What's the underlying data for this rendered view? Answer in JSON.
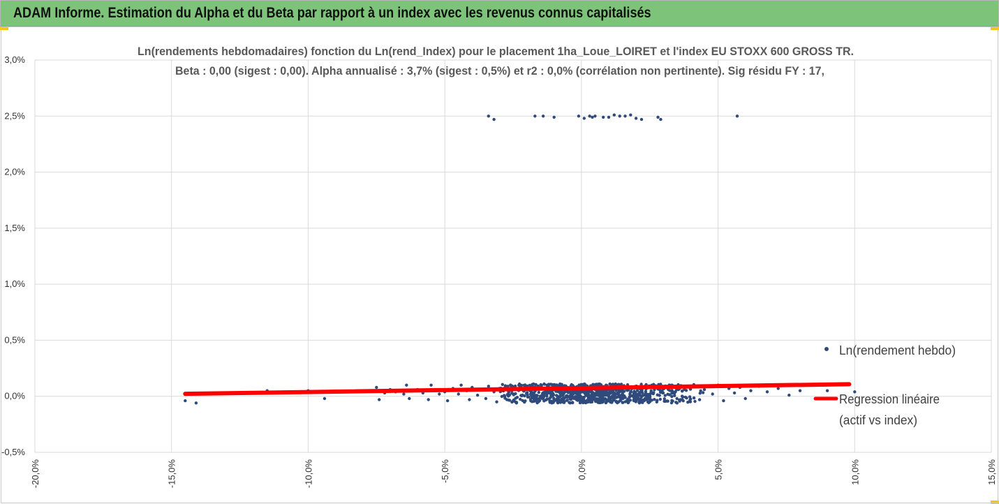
{
  "header": {
    "title": "ADAM Informe. Estimation du Alpha et du Beta par rapport à un index avec les revenus connus capitalisés"
  },
  "colors": {
    "banner": "#7dc47a",
    "accent_corner": "#f5c518",
    "points": "#2f4b7c",
    "regression": "#ff0000",
    "grid": "#d9d9d9"
  },
  "chart_data": {
    "type": "scatter",
    "title_line1": "Ln(rendements hebdomadaires) fonction du Ln(rend_Index) pour le placement 1ha_Loue_LOIRET et l'index EU STOXX 600 GROSS TR.",
    "title_line2": "Beta : 0,00 (sigest : 0,00). Alpha annualisé : 3,7% (sigest : 0,5%) et r2 : 0,0% (corrélation non pertinente). Sig résidu FY : 17,",
    "xlim": [
      -0.2,
      0.15
    ],
    "ylim": [
      -0.005,
      0.03
    ],
    "x_ticks": [
      -0.2,
      -0.15,
      -0.1,
      -0.05,
      0.0,
      0.05,
      0.1,
      0.15
    ],
    "x_tick_labels": [
      "-20,0%",
      "-15,0%",
      "-10,0%",
      "-5,0%",
      "0,0%",
      "5,0%",
      "10,0%",
      "15,0%"
    ],
    "y_ticks": [
      -0.005,
      0.0,
      0.005,
      0.01,
      0.015,
      0.02,
      0.025,
      0.03
    ],
    "y_tick_labels": [
      "-0,5%",
      "0,0%",
      "0,5%",
      "1,0%",
      "1,5%",
      "2,0%",
      "2,5%",
      "3,0%"
    ],
    "grid": true,
    "legend_position": "right",
    "series": [
      {
        "name": "Ln(rendement hebdo)",
        "kind": "points",
        "points": [
          [
            -0.145,
            -0.0004
          ],
          [
            -0.141,
            -0.0006
          ],
          [
            -0.115,
            0.0005
          ],
          [
            -0.1,
            0.0005
          ],
          [
            -0.094,
            -0.0002
          ],
          [
            -0.085,
            0.0004
          ],
          [
            -0.075,
            0.0008
          ],
          [
            -0.074,
            -0.0003
          ],
          [
            -0.072,
            0.0003
          ],
          [
            -0.07,
            0.0006
          ],
          [
            -0.068,
            0.0004
          ],
          [
            -0.065,
            0.0002
          ],
          [
            -0.064,
            0.001
          ],
          [
            -0.063,
            -0.0002
          ],
          [
            -0.06,
            0.0006
          ],
          [
            -0.058,
            0.0003
          ],
          [
            -0.056,
            -0.0003
          ],
          [
            -0.055,
            0.001
          ],
          [
            -0.054,
            0.0005
          ],
          [
            -0.052,
            0.0002
          ],
          [
            -0.05,
            0.0004
          ],
          [
            -0.049,
            -0.0004
          ],
          [
            -0.047,
            0.0007
          ],
          [
            -0.045,
            0.0002
          ],
          [
            -0.044,
            0.001
          ],
          [
            -0.042,
            0.0005
          ],
          [
            -0.041,
            -0.0003
          ],
          [
            -0.04,
            0.0008
          ],
          [
            -0.038,
            0.0001
          ],
          [
            -0.037,
            0.0006
          ],
          [
            -0.035,
            -0.0002
          ],
          [
            -0.034,
            0.0009
          ],
          [
            -0.032,
            0.0004
          ],
          [
            -0.031,
            -0.0005
          ],
          [
            -0.03,
            0.0007
          ],
          [
            0.045,
            0.0006
          ],
          [
            0.048,
            0.0002
          ],
          [
            0.05,
            0.001
          ],
          [
            0.052,
            -0.0004
          ],
          [
            0.054,
            0.0007
          ],
          [
            0.056,
            0.0003
          ],
          [
            0.058,
            0.0008
          ],
          [
            0.06,
            -0.0002
          ],
          [
            0.062,
            0.0005
          ],
          [
            0.065,
            0.0009
          ],
          [
            0.068,
            0.0004
          ],
          [
            0.072,
            0.0007
          ],
          [
            0.076,
            0.0001
          ],
          [
            0.08,
            0.0005
          ],
          [
            0.09,
            0.0005
          ],
          [
            0.1,
            0.0004
          ],
          [
            -0.034,
            0.025
          ],
          [
            -0.032,
            0.0247
          ],
          [
            -0.017,
            0.025
          ],
          [
            -0.014,
            0.025
          ],
          [
            -0.01,
            0.0249
          ],
          [
            -0.001,
            0.025
          ],
          [
            0.001,
            0.0248
          ],
          [
            0.003,
            0.025
          ],
          [
            0.004,
            0.0249
          ],
          [
            0.005,
            0.025
          ],
          [
            0.008,
            0.0249
          ],
          [
            0.01,
            0.0249
          ],
          [
            0.012,
            0.0251
          ],
          [
            0.014,
            0.025
          ],
          [
            0.016,
            0.025
          ],
          [
            0.018,
            0.0251
          ],
          [
            0.02,
            0.0248
          ],
          [
            0.022,
            0.0247
          ],
          [
            0.028,
            0.0249
          ],
          [
            0.029,
            0.0247
          ],
          [
            0.057,
            0.025
          ]
        ],
        "dense_cluster": {
          "count": 950,
          "x_mean": 0.004,
          "x_sd": 0.018,
          "y_min": -0.0006,
          "y_max": 0.0011,
          "seed": 17
        }
      },
      {
        "name": "Regression linéaire (actif vs index)",
        "kind": "line",
        "x": [
          -0.145,
          0.098
        ],
        "y": [
          0.00022,
          0.00108
        ]
      }
    ],
    "legend": [
      {
        "label": "Ln(rendement hebdo)",
        "marker": "dot"
      },
      {
        "label_line1": "Regression linéaire",
        "label_line2": "(actif vs index)",
        "marker": "line"
      }
    ]
  }
}
